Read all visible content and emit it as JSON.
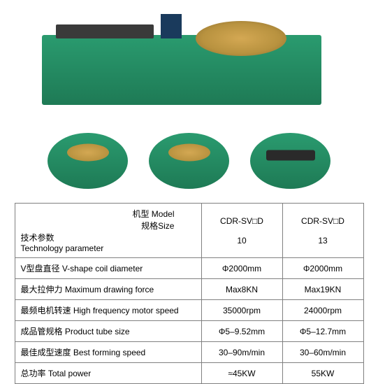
{
  "table": {
    "header": {
      "model_cn": "机型 Model",
      "size_cn": "规格Size",
      "param_cn": "技术参数",
      "param_en": "Technology parameter",
      "col1_name": "CDR-SV□D",
      "col1_num": "10",
      "col2_name": "CDR-SV□D",
      "col2_num": "13"
    },
    "rows": [
      {
        "label": "V型盘直径 V-shape coil diameter",
        "v1": "Φ2000mm",
        "v2": "Φ2000mm"
      },
      {
        "label": "最大拉伸力 Maximum drawing force",
        "v1": "Max8KN",
        "v2": "Max19KN"
      },
      {
        "label": "最频电机转速 High frequency motor speed",
        "v1": "35000rpm",
        "v2": "24000rpm"
      },
      {
        "label": "成品管规格 Product tube size",
        "v1": "Φ5–9.52mm",
        "v2": "Φ5–12.7mm"
      },
      {
        "label": "最佳成型速度 Best forming speed",
        "v1": "30–90m/min",
        "v2": "30–60m/min"
      },
      {
        "label": "总功率 Total power",
        "v1": "≈45KW",
        "v2": "55KW"
      }
    ]
  },
  "colors": {
    "machine_body": "#2a9b6f",
    "disc": "#d4a853",
    "border": "#808080",
    "text": "#000000"
  }
}
